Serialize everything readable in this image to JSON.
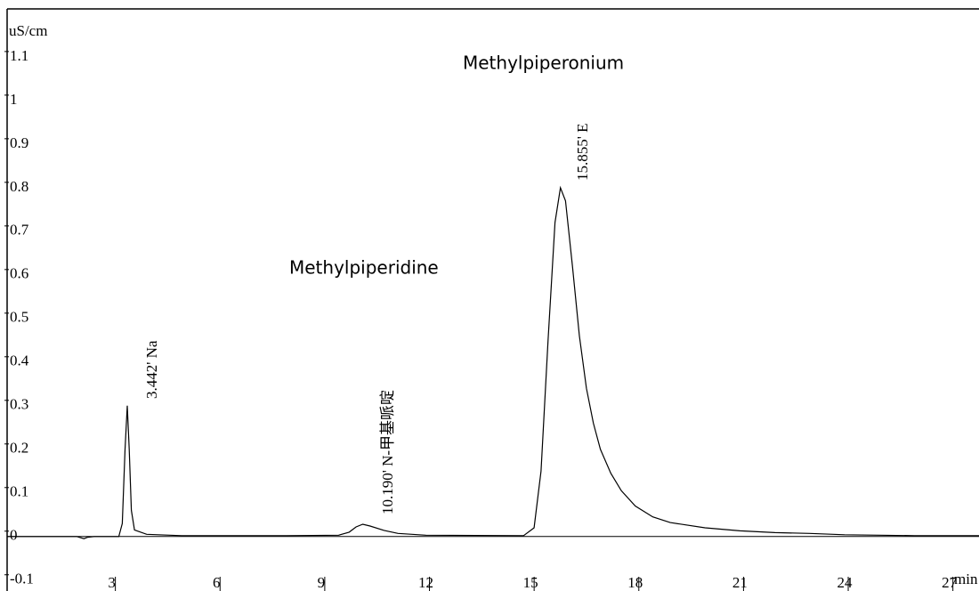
{
  "chart_data": {
    "type": "line",
    "y_label": "uS/cm",
    "x_label": "min",
    "color": "#000000",
    "x": [
      0,
      2.0,
      2.2,
      2.3,
      2.5,
      3.2,
      3.3,
      3.38,
      3.442,
      3.5,
      3.56,
      3.65,
      4,
      5,
      8,
      9.5,
      9.8,
      10.0,
      10.19,
      10.4,
      10.8,
      11.2,
      12,
      14.8,
      15.1,
      15.3,
      15.5,
      15.7,
      15.855,
      16.0,
      16.2,
      16.4,
      16.6,
      16.8,
      17.0,
      17.3,
      17.6,
      18.0,
      18.5,
      19.0,
      20,
      21,
      22,
      23,
      24,
      26,
      27.85
    ],
    "values": [
      0,
      0,
      -0.005,
      -0.002,
      0,
      0,
      0.03,
      0.2,
      0.3,
      0.2,
      0.06,
      0.015,
      0.005,
      0.002,
      0.002,
      0.003,
      0.01,
      0.022,
      0.028,
      0.024,
      0.014,
      0.007,
      0.003,
      0.002,
      0.02,
      0.15,
      0.45,
      0.72,
      0.8,
      0.77,
      0.62,
      0.46,
      0.34,
      0.26,
      0.2,
      0.145,
      0.105,
      0.07,
      0.045,
      0.032,
      0.02,
      0.013,
      0.009,
      0.007,
      0.004,
      0.002,
      0.002
    ],
    "xlim": [
      0,
      27.85
    ],
    "ylim": [
      -0.125,
      1.21
    ],
    "xticks": [
      3,
      6,
      9,
      12,
      15,
      18,
      21,
      24,
      27
    ],
    "yticks": [
      -0.1,
      0,
      0.1,
      0.2,
      0.3,
      0.4,
      0.5,
      0.6,
      0.7,
      0.8,
      0.9,
      1,
      1.1
    ],
    "grid": false,
    "annotations": [
      "Methylpiperonium",
      "Methylpiperidine",
      "3.442' Na",
      "10.190' N-甲基哌啶",
      "15.855' E"
    ]
  }
}
